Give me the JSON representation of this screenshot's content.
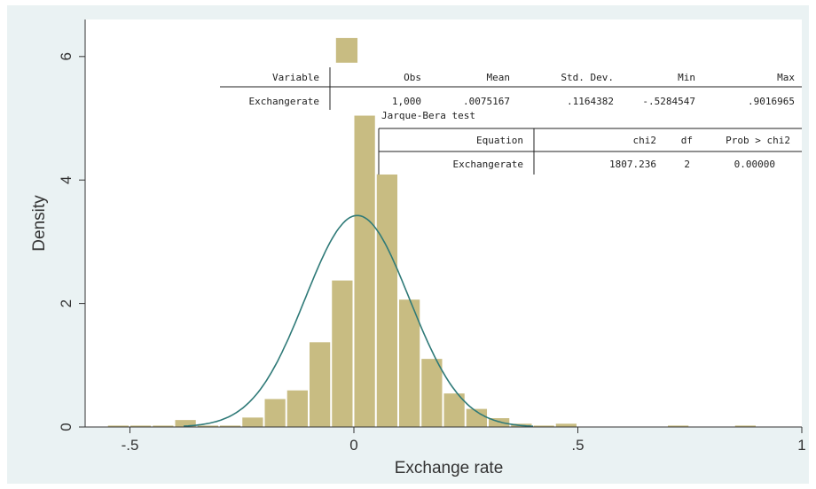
{
  "chart_data": {
    "type": "bar",
    "xlabel": "Exchange rate",
    "ylabel": "Density",
    "xlim": [
      -0.6,
      1.0
    ],
    "ylim": [
      0,
      6.6
    ],
    "x_ticks": [
      {
        "value": -0.5,
        "label": "-.5"
      },
      {
        "value": 0,
        "label": "0"
      },
      {
        "value": 0.5,
        "label": ".5"
      },
      {
        "value": 1,
        "label": "1"
      }
    ],
    "y_ticks": [
      {
        "value": 0,
        "label": "0"
      },
      {
        "value": 2,
        "label": "2"
      },
      {
        "value": 4,
        "label": "4"
      },
      {
        "value": 6,
        "label": "6"
      }
    ],
    "grid": false,
    "bar_color": "#c8bc82",
    "curve_color": "#2f7a78",
    "bin_width": 0.05,
    "bins": [
      {
        "x0": -0.55,
        "density": 0.03
      },
      {
        "x0": -0.5,
        "density": 0.03
      },
      {
        "x0": -0.45,
        "density": 0.03
      },
      {
        "x0": -0.4,
        "density": 0.12
      },
      {
        "x0": -0.35,
        "density": 0.03
      },
      {
        "x0": -0.3,
        "density": 0.03
      },
      {
        "x0": -0.25,
        "density": 0.16
      },
      {
        "x0": -0.2,
        "density": 0.46
      },
      {
        "x0": -0.15,
        "density": 0.6
      },
      {
        "x0": -0.1,
        "density": 1.38
      },
      {
        "x0": -0.05,
        "density": 2.38
      },
      {
        "x0": 0.0,
        "density": 5.05
      },
      {
        "x0": 0.05,
        "density": 4.1
      },
      {
        "x0": 0.1,
        "density": 2.07
      },
      {
        "x0": 0.15,
        "density": 1.11
      },
      {
        "x0": 0.2,
        "density": 0.55
      },
      {
        "x0": 0.25,
        "density": 0.3
      },
      {
        "x0": 0.3,
        "density": 0.15
      },
      {
        "x0": 0.35,
        "density": 0.06
      },
      {
        "x0": 0.4,
        "density": 0.03
      },
      {
        "x0": 0.45,
        "density": 0.06
      },
      {
        "x0": 0.7,
        "density": 0.03
      },
      {
        "x0": 0.85,
        "density": 0.03
      }
    ],
    "top_fragment_bin": {
      "x0": -0.04,
      "density_from": 5.9,
      "density_to": 6.3
    },
    "normal_curve": {
      "mean": 0.0075167,
      "sd": 0.1164382,
      "x_range": [
        -0.38,
        0.4
      ]
    }
  },
  "summary_table": {
    "headers": [
      "Variable",
      "Obs",
      "Mean",
      "Std. Dev.",
      "Min",
      "Max"
    ],
    "row": [
      "Exchangerate",
      "1,000",
      ".0075167",
      ".1164382",
      "-.5284547",
      ".9016965"
    ]
  },
  "jb_title": "Jarque-Bera test",
  "jb_table": {
    "headers": [
      "Equation",
      "chi2",
      "df",
      "Prob > chi2"
    ],
    "row": [
      "Exchangerate",
      "1807.236",
      "2",
      "0.00000"
    ]
  }
}
